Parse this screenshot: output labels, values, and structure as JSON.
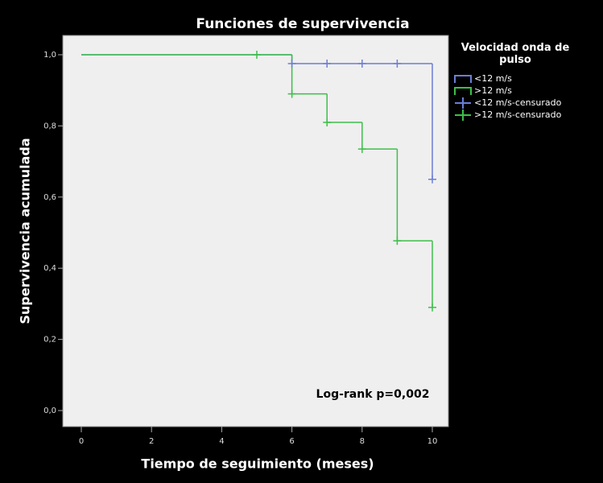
{
  "chart_data": {
    "type": "step",
    "title": "Funciones de supervivencia",
    "x_label": "Tiempo de seguimiento (meses)",
    "y_label": "Supervivencia acumulada",
    "annotation": "Log-rank p=0,002",
    "legend_title": "Velocidad onda de pulso",
    "xlim": [
      0,
      10
    ],
    "xticks": [
      0,
      2,
      4,
      6,
      8,
      10
    ],
    "ylim": [
      0,
      1
    ],
    "yticks": [
      {
        "value": 0,
        "label": "0,0"
      },
      {
        "value": 0.2,
        "label": "0,2"
      },
      {
        "value": 0.4,
        "label": "0,4"
      },
      {
        "value": 0.6,
        "label": "0,6"
      },
      {
        "value": 0.8,
        "label": "0,8"
      },
      {
        "value": 1,
        "label": "1,0"
      }
    ],
    "grid": false,
    "series": [
      {
        "name": "<12 m/s",
        "kind": "step",
        "color": "#6b7fd6",
        "x": [
          0,
          6,
          10
        ],
        "values": [
          1,
          0.975,
          0.65
        ]
      },
      {
        "name": ">12 m/s",
        "kind": "step",
        "color": "#3dbf4a",
        "x": [
          0,
          6,
          7,
          8,
          9,
          10
        ],
        "values": [
          1,
          0.89,
          0.81,
          0.735,
          0.477,
          0.29
        ]
      },
      {
        "name": "<12 m/s-censurado",
        "kind": "censored",
        "color": "#6b7fd6",
        "x": [
          6,
          7,
          8,
          9,
          10
        ],
        "values": [
          0.975,
          0.975,
          0.975,
          0.975,
          0.65
        ]
      },
      {
        "name": ">12 m/s-censurado",
        "kind": "censored",
        "color": "#3dbf4a",
        "x": [
          5,
          6,
          7,
          8,
          9,
          10
        ],
        "values": [
          1,
          0.89,
          0.81,
          0.735,
          0.477,
          0.29
        ]
      }
    ]
  }
}
